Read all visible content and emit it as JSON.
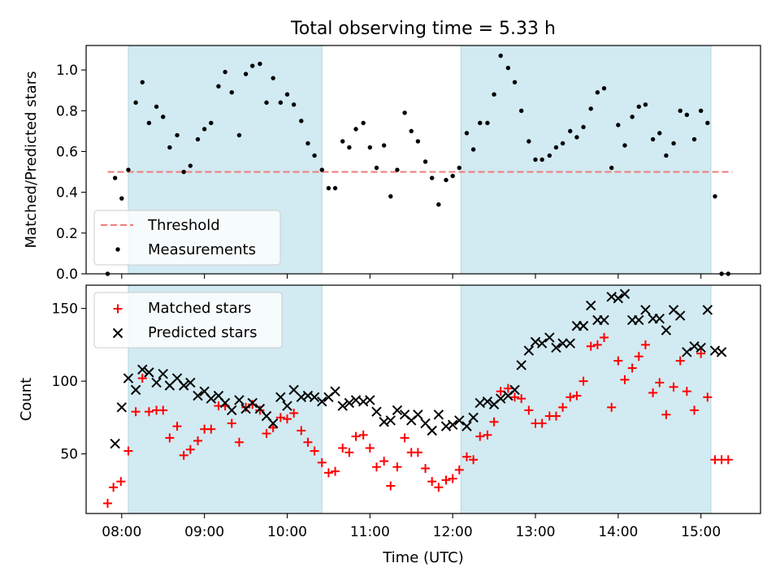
{
  "figure_title": "Total observing time = 5.33 h",
  "colors": {
    "shade": "#add8e6",
    "threshold": "#f08080",
    "measurement": "#000000",
    "matched": "#ff0000",
    "predicted": "#000000"
  },
  "chart_data": [
    {
      "type": "scatter",
      "title": "",
      "xlabel": "",
      "ylabel": "Matched/Predicted stars",
      "xlim": [
        7.57,
        15.72
      ],
      "ylim": [
        0.0,
        1.12
      ],
      "yticks": [
        0.0,
        0.2,
        0.4,
        0.6,
        0.8,
        1.0
      ],
      "yticklabels": [
        "0.0",
        "0.2",
        "0.4",
        "0.6",
        "0.8",
        "1.0"
      ],
      "xticks": [
        8,
        9,
        10,
        11,
        12,
        13,
        14,
        15
      ],
      "shaded_intervals": [
        [
          8.08,
          10.42
        ],
        [
          12.1,
          15.12
        ]
      ],
      "threshold": {
        "label": "Threshold",
        "value": 0.5,
        "x_range": [
          7.83,
          15.38
        ]
      },
      "legend": {
        "position": "lower left",
        "entries": [
          "Threshold",
          "Measurements"
        ]
      },
      "series": [
        {
          "name": "Measurements",
          "x": [
            7.83,
            7.92,
            8.0,
            8.08,
            8.17,
            8.25,
            8.33,
            8.42,
            8.5,
            8.58,
            8.67,
            8.75,
            8.83,
            8.92,
            9.0,
            9.08,
            9.17,
            9.25,
            9.33,
            9.42,
            9.5,
            9.58,
            9.67,
            9.75,
            9.83,
            9.92,
            10.0,
            10.08,
            10.17,
            10.25,
            10.33,
            10.42,
            10.5,
            10.58,
            10.67,
            10.75,
            10.83,
            10.92,
            11.0,
            11.08,
            11.17,
            11.25,
            11.33,
            11.42,
            11.5,
            11.58,
            11.67,
            11.75,
            11.83,
            11.92,
            12.0,
            12.08,
            12.17,
            12.25,
            12.33,
            12.42,
            12.5,
            12.58,
            12.67,
            12.75,
            12.83,
            12.92,
            13.0,
            13.08,
            13.17,
            13.25,
            13.33,
            13.42,
            13.5,
            13.58,
            13.67,
            13.75,
            13.83,
            13.92,
            14.0,
            14.08,
            14.17,
            14.25,
            14.33,
            14.42,
            14.5,
            14.58,
            14.67,
            14.75,
            14.83,
            14.92,
            15.0,
            15.08,
            15.17,
            15.25,
            15.33
          ],
          "y": [
            0.0,
            0.47,
            0.37,
            0.51,
            0.84,
            0.94,
            0.74,
            0.82,
            0.77,
            0.62,
            0.68,
            0.5,
            0.53,
            0.66,
            0.71,
            0.74,
            0.92,
            0.99,
            0.89,
            0.68,
            0.98,
            1.02,
            1.03,
            0.84,
            0.96,
            0.84,
            0.88,
            0.83,
            0.75,
            0.64,
            0.58,
            0.51,
            0.42,
            0.42,
            0.65,
            0.62,
            0.71,
            0.74,
            0.62,
            0.52,
            0.63,
            0.38,
            0.51,
            0.79,
            0.7,
            0.65,
            0.55,
            0.47,
            0.34,
            0.46,
            0.48,
            0.52,
            0.69,
            0.61,
            0.74,
            0.74,
            0.88,
            1.07,
            1.01,
            0.94,
            0.8,
            0.65,
            0.56,
            0.56,
            0.58,
            0.62,
            0.64,
            0.7,
            0.67,
            0.72,
            0.81,
            0.89,
            0.91,
            0.52,
            0.73,
            0.63,
            0.77,
            0.82,
            0.83,
            0.66,
            0.69,
            0.58,
            0.64,
            0.8,
            0.78,
            0.66,
            0.8,
            0.74,
            0.38,
            0.0,
            0.0
          ]
        }
      ]
    },
    {
      "type": "scatter",
      "title": "",
      "xlabel": "Time (UTC)",
      "ylabel": "Count",
      "xlim": [
        7.57,
        15.72
      ],
      "ylim": [
        9,
        166
      ],
      "yticks": [
        50,
        100,
        150
      ],
      "yticklabels": [
        "50",
        "100",
        "150"
      ],
      "xticks": [
        8,
        9,
        10,
        11,
        12,
        13,
        14,
        15
      ],
      "xticklabels": [
        "08:00",
        "09:00",
        "10:00",
        "11:00",
        "12:00",
        "13:00",
        "14:00",
        "15:00"
      ],
      "shaded_intervals": [
        [
          8.08,
          10.42
        ],
        [
          12.1,
          15.12
        ]
      ],
      "legend": {
        "position": "upper left",
        "entries": [
          "Matched stars",
          "Predicted stars"
        ]
      },
      "series": [
        {
          "name": "Matched stars",
          "marker": "+",
          "points": [
            [
              7.83,
              16
            ],
            [
              7.9,
              27
            ],
            [
              7.99,
              31
            ],
            [
              8.08,
              52
            ],
            [
              8.17,
              79
            ],
            [
              8.25,
              102
            ],
            [
              8.33,
              79
            ],
            [
              8.42,
              80
            ],
            [
              8.5,
              80
            ],
            [
              8.58,
              61
            ],
            [
              8.67,
              69
            ],
            [
              8.75,
              49
            ],
            [
              8.83,
              53
            ],
            [
              8.92,
              59
            ],
            [
              9.0,
              67
            ],
            [
              9.08,
              67
            ],
            [
              9.17,
              83
            ],
            [
              9.25,
              83
            ],
            [
              9.33,
              71
            ],
            [
              9.42,
              58
            ],
            [
              9.5,
              82
            ],
            [
              9.58,
              84
            ],
            [
              9.67,
              80
            ],
            [
              9.75,
              64
            ],
            [
              9.83,
              68
            ],
            [
              9.92,
              75
            ],
            [
              10.0,
              74
            ],
            [
              10.08,
              78
            ],
            [
              10.17,
              66
            ],
            [
              10.25,
              58
            ],
            [
              10.33,
              52
            ],
            [
              10.42,
              44
            ],
            [
              10.5,
              37
            ],
            [
              10.58,
              38
            ],
            [
              10.67,
              54
            ],
            [
              10.75,
              51
            ],
            [
              10.83,
              62
            ],
            [
              10.92,
              63
            ],
            [
              11.0,
              54
            ],
            [
              11.08,
              41
            ],
            [
              11.17,
              45
            ],
            [
              11.25,
              28
            ],
            [
              11.33,
              41
            ],
            [
              11.42,
              61
            ],
            [
              11.5,
              51
            ],
            [
              11.58,
              51
            ],
            [
              11.67,
              40
            ],
            [
              11.75,
              31
            ],
            [
              11.83,
              27
            ],
            [
              11.92,
              32
            ],
            [
              12.0,
              33
            ],
            [
              12.08,
              39
            ],
            [
              12.17,
              48
            ],
            [
              12.25,
              46
            ],
            [
              12.33,
              62
            ],
            [
              12.42,
              63
            ],
            [
              12.5,
              72
            ],
            [
              12.58,
              93
            ],
            [
              12.67,
              95
            ],
            [
              12.75,
              89
            ],
            [
              12.83,
              88
            ],
            [
              12.92,
              80
            ],
            [
              13.0,
              71
            ],
            [
              13.08,
              71
            ],
            [
              13.17,
              76
            ],
            [
              13.25,
              76
            ],
            [
              13.33,
              82
            ],
            [
              13.42,
              89
            ],
            [
              13.5,
              90
            ],
            [
              13.58,
              100
            ],
            [
              13.67,
              124
            ],
            [
              13.75,
              125
            ],
            [
              13.83,
              130
            ],
            [
              13.92,
              82
            ],
            [
              14.0,
              114
            ],
            [
              14.08,
              101
            ],
            [
              14.17,
              109
            ],
            [
              14.25,
              117
            ],
            [
              14.33,
              125
            ],
            [
              14.42,
              92
            ],
            [
              14.5,
              99
            ],
            [
              14.58,
              77
            ],
            [
              14.67,
              96
            ],
            [
              14.75,
              114
            ],
            [
              14.83,
              93
            ],
            [
              14.92,
              80
            ],
            [
              15.0,
              119
            ],
            [
              15.08,
              89
            ],
            [
              15.17,
              46
            ],
            [
              15.25,
              46
            ],
            [
              15.33,
              46
            ]
          ]
        },
        {
          "name": "Predicted stars",
          "marker": "x",
          "points": [
            [
              7.92,
              57
            ],
            [
              8.0,
              82
            ],
            [
              8.08,
              102
            ],
            [
              8.17,
              94
            ],
            [
              8.25,
              108
            ],
            [
              8.33,
              106
            ],
            [
              8.42,
              99
            ],
            [
              8.5,
              105
            ],
            [
              8.58,
              97
            ],
            [
              8.67,
              102
            ],
            [
              8.75,
              97
            ],
            [
              8.83,
              99
            ],
            [
              8.92,
              90
            ],
            [
              9.0,
              93
            ],
            [
              9.08,
              88
            ],
            [
              9.17,
              90
            ],
            [
              9.25,
              85
            ],
            [
              9.33,
              80
            ],
            [
              9.42,
              87
            ],
            [
              9.5,
              81
            ],
            [
              9.58,
              85
            ],
            [
              9.67,
              81
            ],
            [
              9.75,
              76
            ],
            [
              9.83,
              71
            ],
            [
              9.92,
              89
            ],
            [
              10.0,
              83
            ],
            [
              10.08,
              94
            ],
            [
              10.17,
              89
            ],
            [
              10.25,
              90
            ],
            [
              10.33,
              89
            ],
            [
              10.42,
              86
            ],
            [
              10.5,
              89
            ],
            [
              10.58,
              93
            ],
            [
              10.67,
              83
            ],
            [
              10.75,
              85
            ],
            [
              10.83,
              87
            ],
            [
              10.92,
              86
            ],
            [
              11.0,
              87
            ],
            [
              11.08,
              79
            ],
            [
              11.17,
              72
            ],
            [
              11.25,
              73
            ],
            [
              11.33,
              80
            ],
            [
              11.42,
              77
            ],
            [
              11.5,
              73
            ],
            [
              11.58,
              77
            ],
            [
              11.67,
              71
            ],
            [
              11.75,
              66
            ],
            [
              11.83,
              77
            ],
            [
              11.92,
              69
            ],
            [
              12.0,
              70
            ],
            [
              12.08,
              73
            ],
            [
              12.17,
              69
            ],
            [
              12.25,
              75
            ],
            [
              12.33,
              85
            ],
            [
              12.42,
              86
            ],
            [
              12.5,
              84
            ],
            [
              12.58,
              88
            ],
            [
              12.67,
              90
            ],
            [
              12.75,
              94
            ],
            [
              12.83,
              111
            ],
            [
              12.92,
              121
            ],
            [
              13.0,
              127
            ],
            [
              13.08,
              126
            ],
            [
              13.17,
              130
            ],
            [
              13.25,
              123
            ],
            [
              13.33,
              126
            ],
            [
              13.42,
              126
            ],
            [
              13.5,
              138
            ],
            [
              13.58,
              138
            ],
            [
              13.67,
              152
            ],
            [
              13.75,
              142
            ],
            [
              13.83,
              142
            ],
            [
              13.92,
              158
            ],
            [
              14.0,
              157
            ],
            [
              14.08,
              160
            ],
            [
              14.17,
              142
            ],
            [
              14.25,
              142
            ],
            [
              14.33,
              149
            ],
            [
              14.42,
              143
            ],
            [
              14.5,
              143
            ],
            [
              14.58,
              135
            ],
            [
              14.67,
              149
            ],
            [
              14.75,
              145
            ],
            [
              14.83,
              120
            ],
            [
              14.92,
              124
            ],
            [
              15.0,
              123
            ],
            [
              15.08,
              149
            ],
            [
              15.17,
              121
            ],
            [
              15.25,
              120
            ]
          ]
        }
      ]
    }
  ]
}
